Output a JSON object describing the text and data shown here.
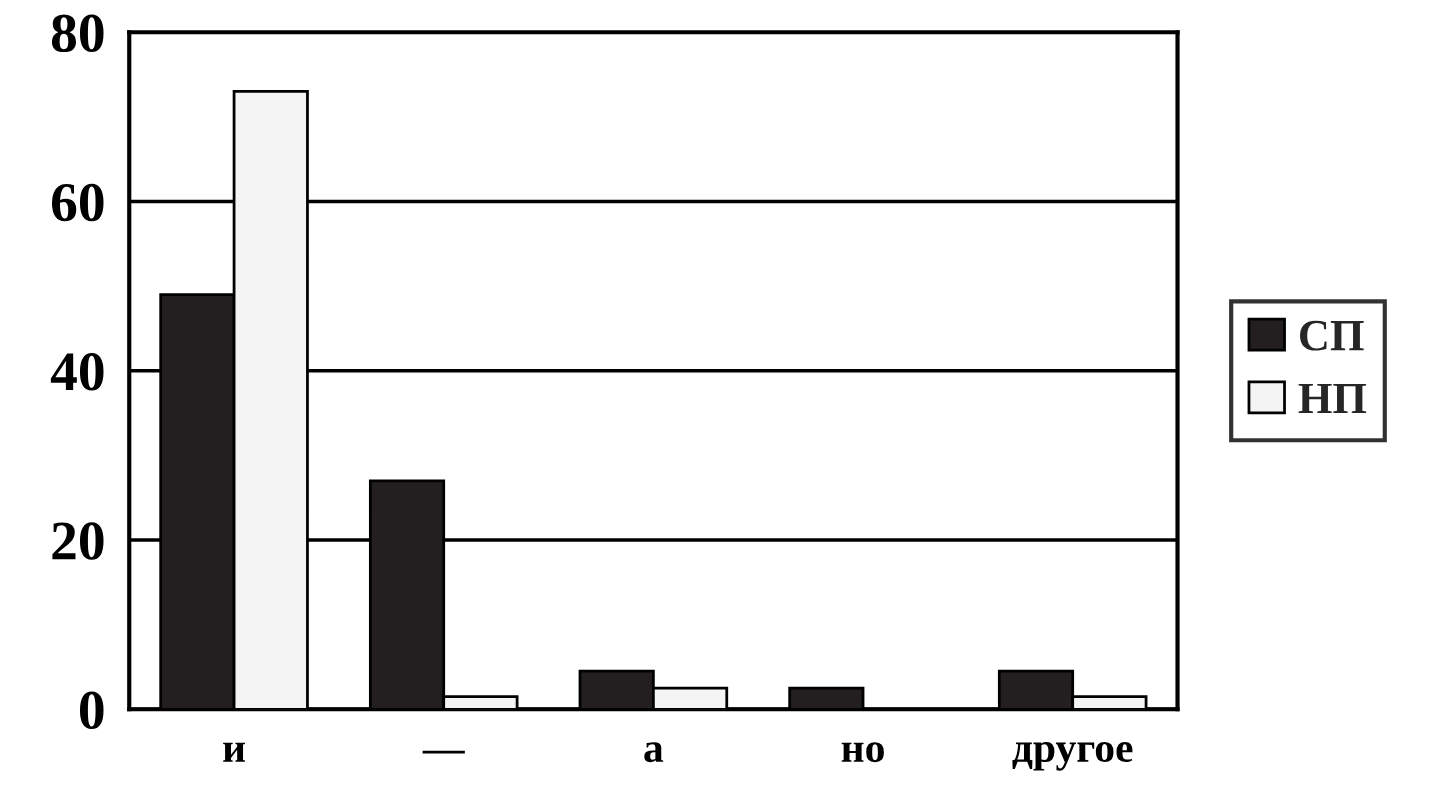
{
  "chart_data": {
    "type": "bar",
    "categories": [
      "и",
      "—",
      "а",
      "но",
      "другое"
    ],
    "series": [
      {
        "name": "СП",
        "color": "#231f20",
        "values": [
          49,
          27,
          4.5,
          2.5,
          4.5
        ]
      },
      {
        "name": "НП",
        "color": "#f4f4f4",
        "values": [
          73,
          1.5,
          2.5,
          0,
          1.5
        ]
      }
    ],
    "ylim": [
      0,
      80
    ],
    "yticks": [
      0,
      20,
      40,
      60,
      80
    ],
    "grid": "y",
    "legend": "right"
  }
}
